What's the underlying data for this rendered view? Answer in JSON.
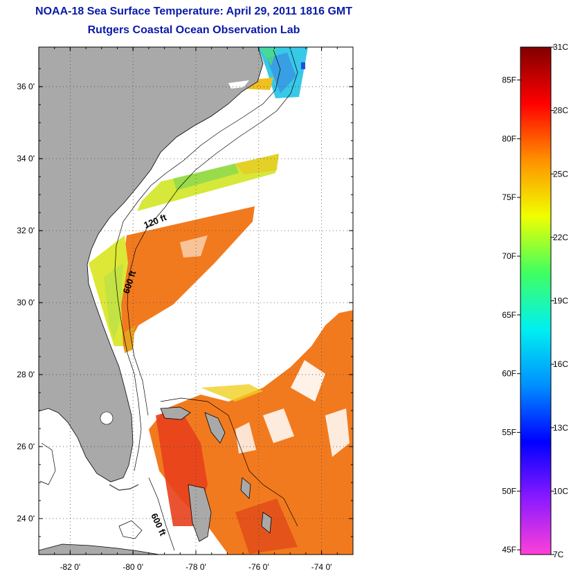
{
  "title": {
    "line1": "NOAA-18 Sea Surface Temperature:  April 29, 2011 1816 GMT",
    "line2": "Rutgers Coastal Ocean Observation Lab"
  },
  "map": {
    "lat_range": [
      23,
      37.1
    ],
    "lon_range": [
      -83,
      -73
    ],
    "lat_ticks": [
      {
        "value": 24,
        "label": "24 0'"
      },
      {
        "value": 26,
        "label": "26 0'"
      },
      {
        "value": 28,
        "label": "28 0'"
      },
      {
        "value": 30,
        "label": "30 0'"
      },
      {
        "value": 32,
        "label": "32 0'"
      },
      {
        "value": 34,
        "label": "34 0'"
      },
      {
        "value": 36,
        "label": "36 0'"
      }
    ],
    "lon_ticks": [
      {
        "value": -82,
        "label": "-82 0'"
      },
      {
        "value": -80,
        "label": "-80 0'"
      },
      {
        "value": -78,
        "label": "-78 0'"
      },
      {
        "value": -76,
        "label": "-76 0'"
      },
      {
        "value": -74,
        "label": "-74 0'"
      }
    ],
    "grid": "dotted",
    "contour_labels": [
      "120 ft",
      "600 ft",
      "600 ft"
    ],
    "colors": {
      "land": "#a9a9a9",
      "sst_warm": "#f07a1e",
      "sst_hot": "#e8301a",
      "sst_mid": "#f0d020",
      "sst_cool": "#38d0e8"
    }
  },
  "colorbar": {
    "orientation": "vertical",
    "range_c": [
      7,
      31
    ],
    "celsius_labels": [
      "31C",
      "28C",
      "25C",
      "22C",
      "19C",
      "16C",
      "13C",
      "10C",
      "7C"
    ],
    "fahrenheit_labels": [
      "85F",
      "80F",
      "75F",
      "70F",
      "65F",
      "60F",
      "55F",
      "50F",
      "45F"
    ],
    "gradient_stops": [
      "#ff40d8",
      "#8a1aff",
      "#0000ff",
      "#0090ff",
      "#00f0f0",
      "#40ff60",
      "#f0ff00",
      "#ff9000",
      "#ff0000",
      "#800000"
    ]
  }
}
